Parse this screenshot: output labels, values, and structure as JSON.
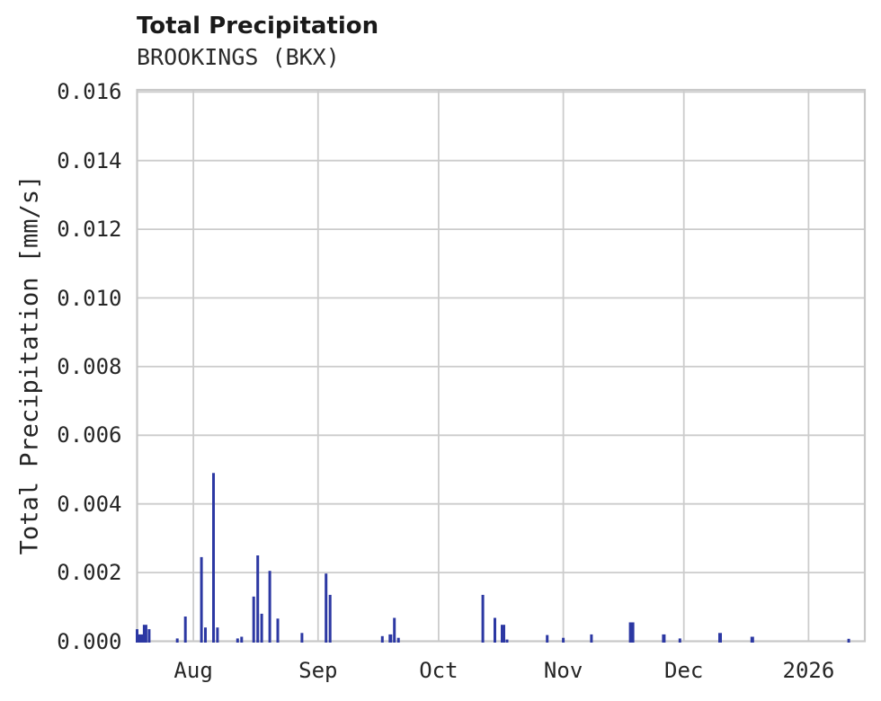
{
  "header": {
    "title": "Total Precipitation",
    "subtitle": "BROOKINGS (BKX)"
  },
  "chart_data": {
    "type": "bar",
    "title": "Total Precipitation",
    "subtitle": "BROOKINGS (BKX)",
    "station": "BROOKINGS (BKX)",
    "xlabel": "",
    "ylabel": "Total Precipitation [mm/s]",
    "units": "mm/s",
    "grid": true,
    "legend": false,
    "ylim": [
      0,
      0.01606
    ],
    "x_range": {
      "start": "2025-07-18T12:00:00Z",
      "end": "2026-01-15T12:00:00Z"
    },
    "yticks": [
      {
        "v": 0.0,
        "label": "0.000"
      },
      {
        "v": 0.002,
        "label": "0.002"
      },
      {
        "v": 0.004,
        "label": "0.004"
      },
      {
        "v": 0.006,
        "label": "0.006"
      },
      {
        "v": 0.008,
        "label": "0.008"
      },
      {
        "v": 0.01,
        "label": "0.010"
      },
      {
        "v": 0.012,
        "label": "0.012"
      },
      {
        "v": 0.014,
        "label": "0.014"
      },
      {
        "v": 0.016,
        "label": "0.016"
      }
    ],
    "xticks": [
      {
        "date": "2025-08-01",
        "label": "Aug"
      },
      {
        "date": "2025-09-01",
        "label": "Sep"
      },
      {
        "date": "2025-10-01",
        "label": "Oct"
      },
      {
        "date": "2025-11-01",
        "label": "Nov"
      },
      {
        "date": "2025-12-01",
        "label": "Dec"
      },
      {
        "date": "2026-01-01",
        "label": "2026"
      }
    ],
    "points": [
      {
        "date": "2025-07-18",
        "value": 0.00035
      },
      {
        "date": "2025-07-19",
        "value": 0.0002,
        "w": 6
      },
      {
        "date": "2025-07-20",
        "value": 0.00048,
        "w": 5
      },
      {
        "date": "2025-07-21",
        "value": 0.00035
      },
      {
        "date": "2025-07-28",
        "value": 8e-05
      },
      {
        "date": "2025-07-30",
        "value": 0.00072
      },
      {
        "date": "2025-08-03",
        "value": 0.00245
      },
      {
        "date": "2025-08-04",
        "value": 0.0004
      },
      {
        "date": "2025-08-06",
        "value": 0.0049
      },
      {
        "date": "2025-08-07",
        "value": 0.0004
      },
      {
        "date": "2025-08-12",
        "value": 8e-05
      },
      {
        "date": "2025-08-13",
        "value": 0.00013
      },
      {
        "date": "2025-08-16",
        "value": 0.0013
      },
      {
        "date": "2025-08-17",
        "value": 0.0025
      },
      {
        "date": "2025-08-18",
        "value": 0.0008
      },
      {
        "date": "2025-08-20",
        "value": 0.00205
      },
      {
        "date": "2025-08-22",
        "value": 0.00066
      },
      {
        "date": "2025-08-28",
        "value": 0.00024
      },
      {
        "date": "2025-09-03",
        "value": 0.00197
      },
      {
        "date": "2025-09-04",
        "value": 0.00135
      },
      {
        "date": "2025-09-17",
        "value": 0.00015
      },
      {
        "date": "2025-09-19",
        "value": 0.0002,
        "w": 4
      },
      {
        "date": "2025-09-20",
        "value": 0.00068
      },
      {
        "date": "2025-09-21",
        "value": 0.0001
      },
      {
        "date": "2025-10-12",
        "value": 0.00135
      },
      {
        "date": "2025-10-15",
        "value": 0.00068
      },
      {
        "date": "2025-10-17",
        "value": 0.00048,
        "w": 5
      },
      {
        "date": "2025-10-18",
        "value": 5e-05
      },
      {
        "date": "2025-10-28",
        "value": 0.00018
      },
      {
        "date": "2025-11-01",
        "value": 0.0001
      },
      {
        "date": "2025-11-08",
        "value": 0.0002
      },
      {
        "date": "2025-11-18",
        "value": 0.00055,
        "w": 6
      },
      {
        "date": "2025-11-26",
        "value": 0.0002,
        "w": 4
      },
      {
        "date": "2025-11-30",
        "value": 8e-05
      },
      {
        "date": "2025-12-10",
        "value": 0.00024,
        "w": 4
      },
      {
        "date": "2025-12-18",
        "value": 0.00013,
        "w": 4
      },
      {
        "date": "2026-01-11",
        "value": 7e-05
      }
    ],
    "colors": {
      "series": "#2c38a3",
      "grid": "#cccccc",
      "frame": "#c8c8c8",
      "text": "#262626"
    }
  }
}
